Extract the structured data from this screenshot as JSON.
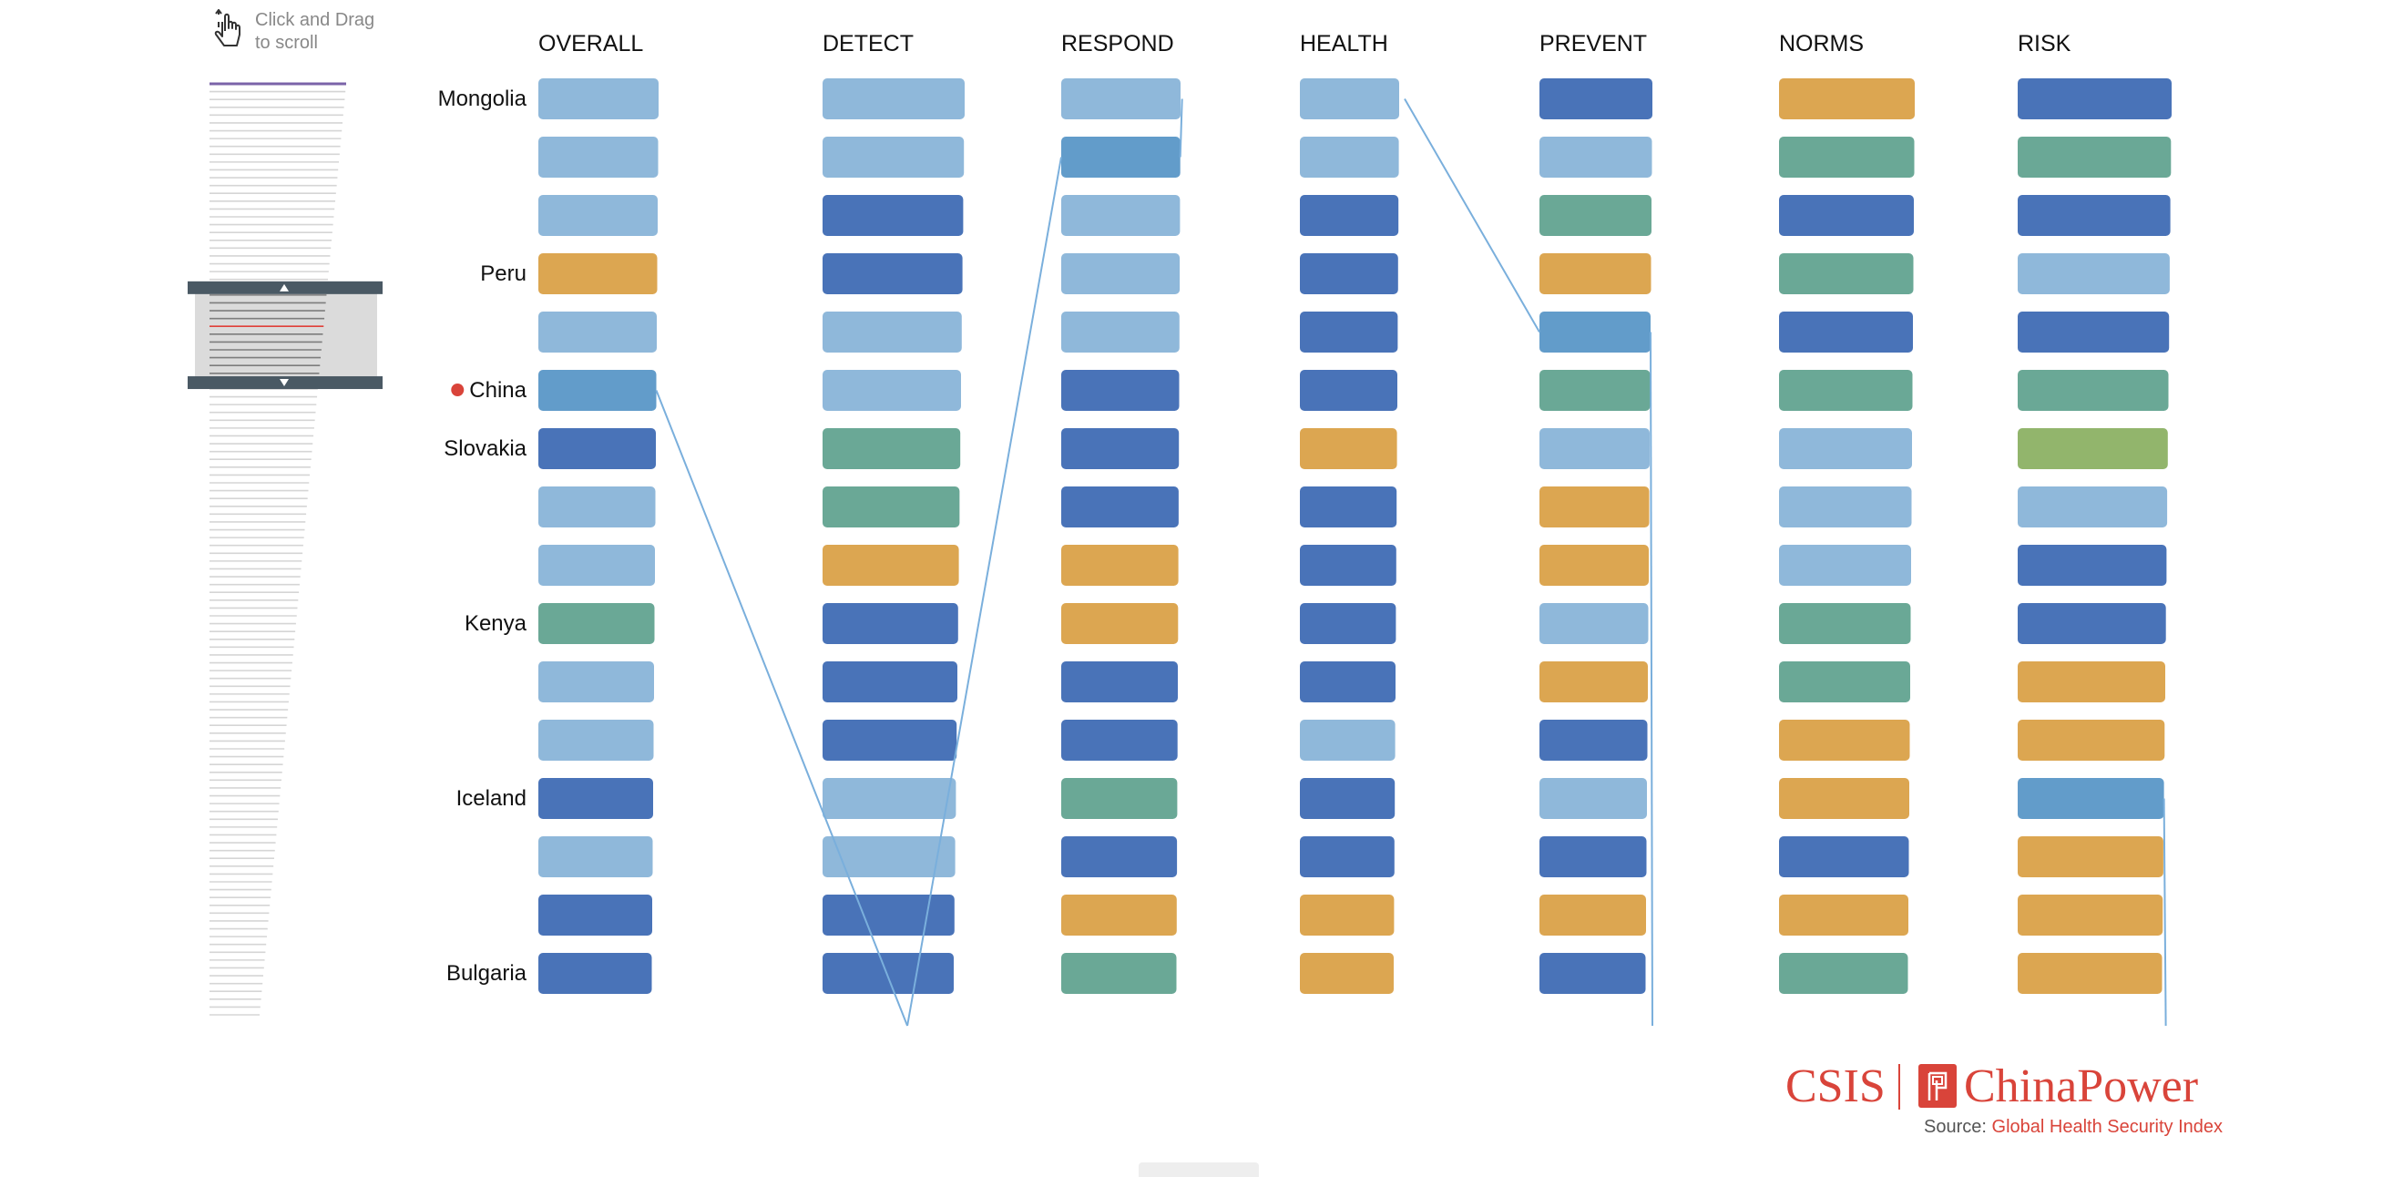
{
  "scroll_hint": {
    "text_line1": "Click and Drag",
    "text_line2": "to scroll"
  },
  "colors": {
    "very_light_blue": "#8fb8da",
    "mid_blue": "#629cca",
    "dark_blue": "#4973b8",
    "teal": "#6aa896",
    "orange": "#dca651",
    "olive": "#92b56c",
    "line": "#7aafdc",
    "china_marker": "#d9443a",
    "slider_band": "#4a5964",
    "slider_window": "#d5d5d5",
    "minimap_line": "#d5d5d5",
    "minimap_top": "#7b63a8",
    "minimap_highlight": "#e0413b"
  },
  "chart_data": {
    "type": "table",
    "title": "",
    "columns": [
      "OVERALL",
      "DETECT",
      "RESPOND",
      "HEALTH",
      "PREVENT",
      "NORMS",
      "RISK"
    ],
    "highlight_country": "China",
    "rows": [
      {
        "label": "Mongolia",
        "cells": [
          "very_light_blue",
          "very_light_blue",
          "very_light_blue",
          "very_light_blue",
          "dark_blue",
          "orange",
          "dark_blue"
        ]
      },
      {
        "label": "",
        "cells": [
          "very_light_blue",
          "very_light_blue",
          "mid_blue",
          "very_light_blue",
          "very_light_blue",
          "teal",
          "teal"
        ]
      },
      {
        "label": "",
        "cells": [
          "very_light_blue",
          "dark_blue",
          "very_light_blue",
          "dark_blue",
          "teal",
          "dark_blue",
          "dark_blue"
        ]
      },
      {
        "label": "Peru",
        "cells": [
          "orange",
          "dark_blue",
          "very_light_blue",
          "dark_blue",
          "orange",
          "teal",
          "very_light_blue"
        ]
      },
      {
        "label": "",
        "cells": [
          "very_light_blue",
          "very_light_blue",
          "very_light_blue",
          "dark_blue",
          "mid_blue",
          "dark_blue",
          "dark_blue"
        ]
      },
      {
        "label": "China",
        "cells": [
          "mid_blue",
          "very_light_blue",
          "dark_blue",
          "dark_blue",
          "teal",
          "teal",
          "teal"
        ]
      },
      {
        "label": "Slovakia",
        "cells": [
          "dark_blue",
          "teal",
          "dark_blue",
          "orange",
          "very_light_blue",
          "very_light_blue",
          "olive"
        ]
      },
      {
        "label": "",
        "cells": [
          "very_light_blue",
          "teal",
          "dark_blue",
          "dark_blue",
          "orange",
          "very_light_blue",
          "very_light_blue"
        ]
      },
      {
        "label": "",
        "cells": [
          "very_light_blue",
          "orange",
          "orange",
          "dark_blue",
          "orange",
          "very_light_blue",
          "dark_blue"
        ]
      },
      {
        "label": "Kenya",
        "cells": [
          "teal",
          "dark_blue",
          "orange",
          "dark_blue",
          "very_light_blue",
          "teal",
          "dark_blue"
        ]
      },
      {
        "label": "",
        "cells": [
          "very_light_blue",
          "dark_blue",
          "dark_blue",
          "dark_blue",
          "orange",
          "teal",
          "orange"
        ]
      },
      {
        "label": "",
        "cells": [
          "very_light_blue",
          "dark_blue",
          "dark_blue",
          "very_light_blue",
          "dark_blue",
          "orange",
          "orange"
        ]
      },
      {
        "label": "Iceland",
        "cells": [
          "dark_blue",
          "very_light_blue",
          "teal",
          "dark_blue",
          "very_light_blue",
          "orange",
          "mid_blue"
        ]
      },
      {
        "label": "",
        "cells": [
          "very_light_blue",
          "very_light_blue",
          "dark_blue",
          "dark_blue",
          "dark_blue",
          "dark_blue",
          "orange"
        ]
      },
      {
        "label": "",
        "cells": [
          "dark_blue",
          "dark_blue",
          "orange",
          "orange",
          "orange",
          "orange",
          "orange"
        ]
      },
      {
        "label": "Bulgaria",
        "cells": [
          "dark_blue",
          "dark_blue",
          "teal",
          "orange",
          "dark_blue",
          "teal",
          "orange"
        ]
      }
    ],
    "connector_note": "lines trace China's rank across columns (below visible window for most categories)",
    "connectors": [
      {
        "from_column": 0,
        "from_row": 5,
        "to_column": 1,
        "to_row": "below"
      },
      {
        "from_column": 1,
        "from_row": "below",
        "to_column": 2,
        "to_row": 1
      },
      {
        "from_column": 2,
        "from_row": 1,
        "to_column": 2,
        "to_row": 0
      },
      {
        "from_column": 3,
        "from_row": 0,
        "to_column": 4,
        "to_row": 4
      },
      {
        "from_column": 4,
        "from_row": 4,
        "to_column": 4,
        "to_row": "below"
      },
      {
        "from_column": 6,
        "from_row": 12,
        "to_column": 6,
        "to_row": "below"
      }
    ]
  },
  "minimap": {
    "line_count": 120,
    "window_start_fraction": 0.22,
    "window_end_fraction": 0.32,
    "highlight_fraction": 0.26
  },
  "brand": {
    "csis": "CSIS",
    "name": "ChinaPower"
  },
  "source": {
    "label": "Source:",
    "link_text": "Global Health Security Index"
  }
}
